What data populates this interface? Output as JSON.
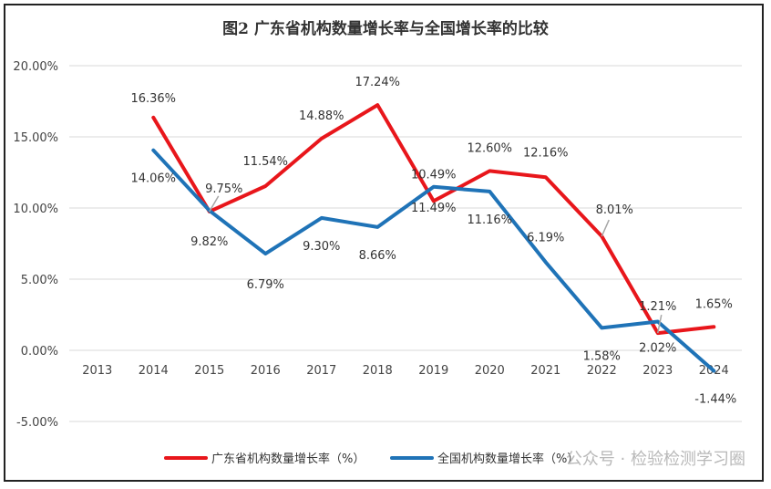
{
  "chart_data": {
    "type": "line",
    "title": "图2  广东省机构数量增长率与全国增长率的比较",
    "xlabel": "",
    "ylabel": "",
    "categories": [
      "2013",
      "2014",
      "2015",
      "2016",
      "2017",
      "2018",
      "2019",
      "2020",
      "2021",
      "2022",
      "2023",
      "2024"
    ],
    "y_ticks": [
      "20.00%",
      "15.00%",
      "10.00%",
      "5.00%",
      "0.00%",
      "-5.00%"
    ],
    "ylim": [
      -5,
      20
    ],
    "grid": true,
    "legend_position": "bottom",
    "series": [
      {
        "name": "广东省机构数量增长率（%）",
        "color": "#e8161b",
        "values": [
          null,
          16.36,
          9.75,
          11.54,
          14.88,
          17.24,
          10.49,
          12.6,
          12.16,
          8.01,
          1.21,
          1.65
        ],
        "labels": [
          null,
          "16.36%",
          "9.75%",
          "11.54%",
          "14.88%",
          "17.24%",
          "10.49%",
          "12.60%",
          "12.16%",
          "8.01%",
          "1.21%",
          "1.65%"
        ]
      },
      {
        "name": "全国机构数量增长率（%）",
        "color": "#1f73b7",
        "values": [
          null,
          14.06,
          9.82,
          6.79,
          9.3,
          8.66,
          11.49,
          11.16,
          6.19,
          1.58,
          2.02,
          -1.44
        ],
        "labels": [
          null,
          "14.06%",
          "9.82%",
          "6.79%",
          "9.30%",
          "8.66%",
          "11.49%",
          "11.16%",
          "6.19%",
          "1.58%",
          "2.02%",
          "-1.44%"
        ]
      }
    ]
  },
  "watermark": "公众号 · 检验检测学习圈"
}
